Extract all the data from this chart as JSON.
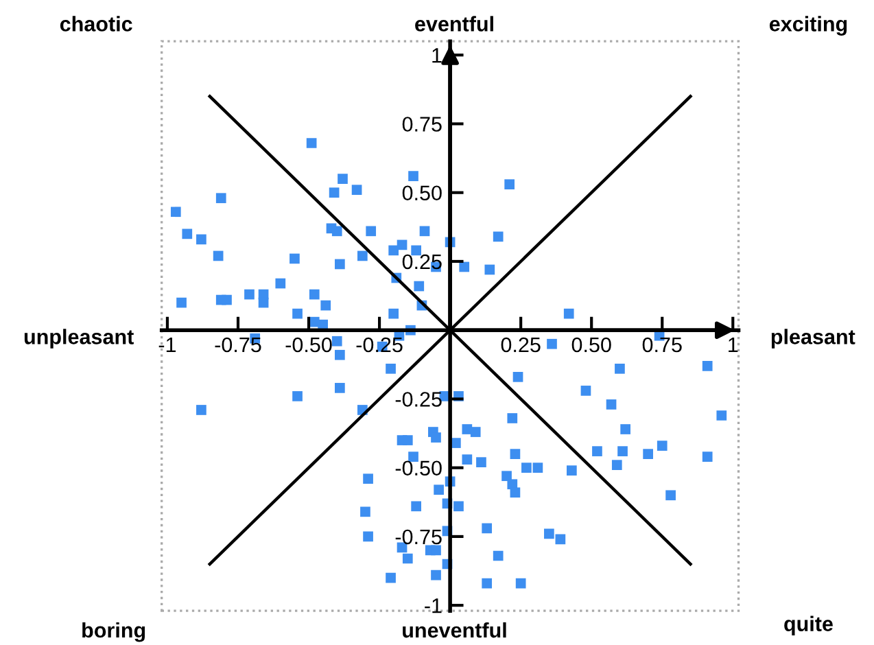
{
  "chart_data": {
    "type": "scatter",
    "grid": false,
    "legend": false,
    "xlim": [
      -1.02,
      1.02
    ],
    "ylim": [
      -1.02,
      1.05
    ],
    "xticks": [
      {
        "value": -1,
        "label": "-1"
      },
      {
        "value": -0.75,
        "label": "-0.75"
      },
      {
        "value": -0.5,
        "label": "-0.50"
      },
      {
        "value": -0.25,
        "label": "-0.25"
      },
      0.25,
      {
        "value": 0.5,
        "label": "0.50"
      },
      0.75,
      1
    ],
    "yticks": [
      {
        "value": -1,
        "label": "-1"
      },
      {
        "value": -0.75,
        "label": "-0.75"
      },
      {
        "value": -0.5,
        "label": "-0.50"
      },
      {
        "value": -0.25,
        "label": "-0.25"
      },
      0.25,
      {
        "value": 0.5,
        "label": "0.50"
      },
      0.75,
      1
    ],
    "annotations": [
      "chaotic",
      "eventful",
      "exciting",
      "unpleasant",
      "pleasant",
      "boring",
      "uneventful",
      "quite"
    ],
    "series": [
      {
        "marker": "square",
        "color": "#3d8ef0",
        "x": [
          -0.49,
          -0.38,
          -0.41,
          -0.33,
          -0.13,
          -0.81,
          -0.97,
          -0.93,
          -0.88,
          -0.82,
          -0.42,
          -0.4,
          -0.28,
          -0.09,
          0.0,
          -0.17,
          -0.2,
          -0.12,
          -0.31,
          -0.55,
          -0.39,
          -0.05,
          -0.19,
          -0.11,
          -0.6,
          -0.95,
          -0.81,
          -0.79,
          -0.71,
          -0.66,
          -0.66,
          -0.48,
          -0.44,
          -0.54,
          -0.2,
          -0.1,
          -0.48,
          -0.45,
          -0.14,
          0.21,
          0.17,
          0.05,
          0.14,
          0.42,
          -0.69,
          -0.4,
          -0.24,
          -0.18,
          -0.39,
          -0.21,
          -0.88,
          -0.54,
          -0.39,
          -0.31,
          -0.02,
          -0.06,
          -0.05,
          -0.17,
          -0.15,
          -0.13,
          -0.29,
          -0.04,
          -0.01,
          -0.12,
          -0.3,
          -0.01,
          -0.29,
          -0.17,
          -0.15,
          -0.07,
          -0.05,
          -0.01,
          -0.05,
          -0.21,
          0.0,
          0.36,
          0.74,
          0.6,
          0.91,
          0.24,
          0.48,
          0.03,
          0.57,
          0.96,
          0.22,
          0.06,
          0.09,
          0.62,
          0.02,
          0.52,
          0.61,
          0.75,
          0.7,
          0.91,
          0.23,
          0.06,
          0.11,
          0.27,
          0.31,
          0.43,
          0.59,
          0.2,
          0.22,
          0.23,
          0.78,
          0.03,
          0.13,
          0.35,
          0.39,
          0.17,
          0.13,
          0.25
        ],
        "values": [
          0.68,
          0.55,
          0.5,
          0.51,
          0.56,
          0.48,
          0.43,
          0.35,
          0.33,
          0.27,
          0.37,
          0.36,
          0.36,
          0.36,
          0.32,
          0.31,
          0.29,
          0.29,
          0.27,
          0.26,
          0.24,
          0.23,
          0.19,
          0.16,
          0.17,
          0.1,
          0.11,
          0.11,
          0.13,
          0.13,
          0.1,
          0.13,
          0.09,
          0.06,
          0.06,
          0.09,
          0.03,
          0.02,
          0.0,
          0.53,
          0.34,
          0.23,
          0.22,
          0.06,
          -0.03,
          -0.04,
          -0.06,
          -0.02,
          -0.09,
          -0.14,
          -0.29,
          -0.24,
          -0.21,
          -0.29,
          -0.24,
          -0.37,
          -0.39,
          -0.4,
          -0.4,
          -0.46,
          -0.54,
          -0.58,
          -0.63,
          -0.64,
          -0.66,
          -0.73,
          -0.75,
          -0.79,
          -0.83,
          -0.8,
          -0.8,
          -0.85,
          -0.89,
          -0.9,
          -0.55,
          -0.05,
          -0.02,
          -0.14,
          -0.13,
          -0.17,
          -0.22,
          -0.24,
          -0.27,
          -0.31,
          -0.32,
          -0.36,
          -0.37,
          -0.36,
          -0.41,
          -0.44,
          -0.44,
          -0.42,
          -0.45,
          -0.46,
          -0.45,
          -0.47,
          -0.48,
          -0.5,
          -0.5,
          -0.51,
          -0.49,
          -0.53,
          -0.56,
          -0.59,
          -0.6,
          -0.64,
          -0.72,
          -0.74,
          -0.76,
          -0.82,
          -0.92,
          -0.92
        ]
      },
      {
        "type": "line",
        "color": "#000000",
        "x": [
          -0.85,
          0.85
        ],
        "values": [
          0.85,
          -0.85
        ]
      },
      {
        "type": "line",
        "color": "#000000",
        "x": [
          -0.85,
          0.85
        ],
        "values": [
          -0.85,
          0.85
        ]
      }
    ]
  }
}
